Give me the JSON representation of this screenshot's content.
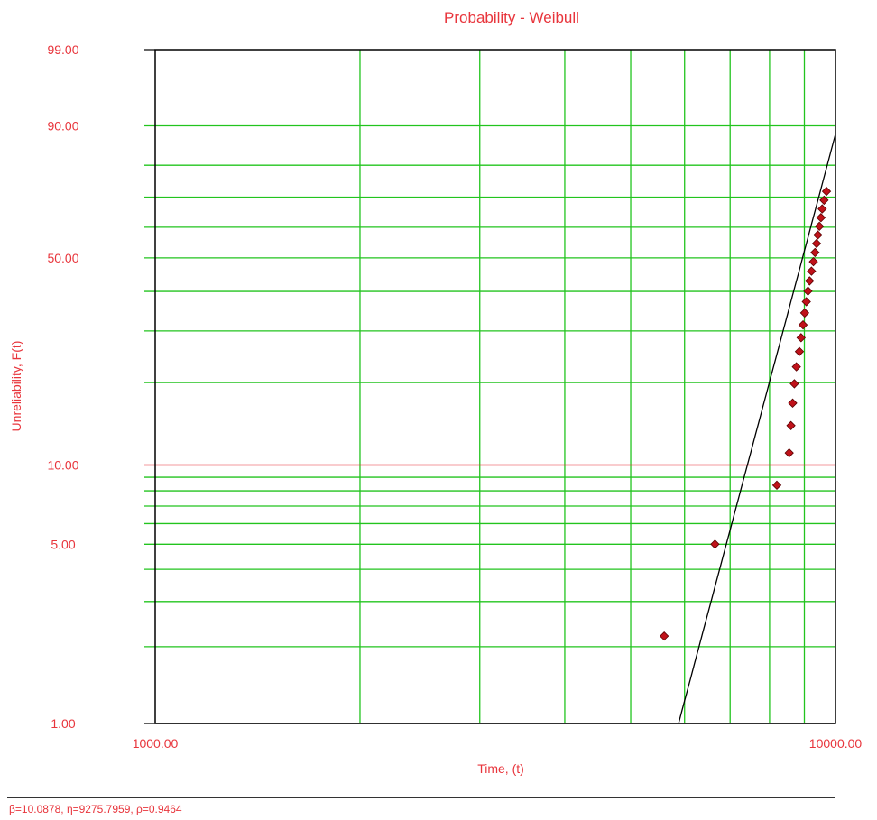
{
  "chart_data": {
    "type": "scatter",
    "title": "Probability - Weibull",
    "xlabel": "Time, (t)",
    "ylabel": "Unreliability, F(t)",
    "x_scale": "log",
    "y_scale": "weibull",
    "xlim": [
      1000,
      10000
    ],
    "ylim": [
      1,
      99
    ],
    "x_tick_labels": [
      "1000.00",
      "10000.00"
    ],
    "x_ticks": [
      1000,
      10000
    ],
    "y_tick_labels": [
      "1.00",
      "5.00",
      "10.00",
      "50.00",
      "90.00",
      "99.00"
    ],
    "y_ticks": [
      1,
      5,
      10,
      50,
      90,
      99
    ],
    "grid": true,
    "colors": {
      "grid": "#22c41e",
      "highlight_line": "#e8353c",
      "text": "#e8353c",
      "points": "#c0121a",
      "fit_line": "#000000",
      "frame": "#000000"
    },
    "series": [
      {
        "type": "scatter",
        "x": [
          5600,
          6650,
          8200,
          8550,
          8600,
          8650,
          8700,
          8760,
          8850,
          8900,
          8960,
          9010,
          9060,
          9110,
          9160,
          9220,
          9280,
          9330,
          9380,
          9420,
          9470,
          9520,
          9560,
          9620,
          9700
        ],
        "y": [
          2.2,
          5.0,
          8.4,
          11.1,
          14.0,
          16.9,
          19.8,
          22.7,
          25.6,
          28.5,
          31.4,
          34.3,
          37.2,
          40.1,
          43.0,
          45.9,
          48.8,
          51.7,
          54.6,
          57.4,
          60.3,
          63.2,
          66.1,
          69.0,
          71.9
        ]
      },
      {
        "type": "line",
        "beta": 10.0878,
        "eta": 9275.7959,
        "x": [
          5800,
          10000
        ]
      }
    ],
    "footer": "β=10.0878, η=9275.7959, ρ=0.9464"
  }
}
